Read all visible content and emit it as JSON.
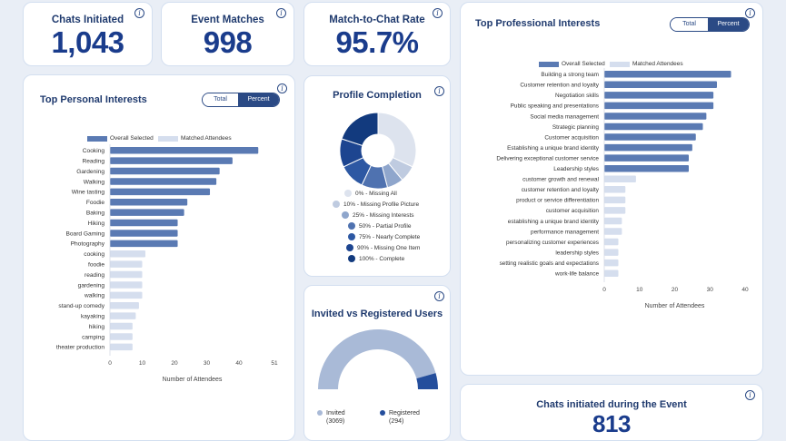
{
  "kpis": {
    "chats_initiated": {
      "label": "Chats Initiated",
      "value": "1,043"
    },
    "event_matches": {
      "label": "Event Matches",
      "value": "998"
    },
    "match_rate": {
      "label": "Match-to-Chat Rate",
      "value": "95.7%"
    }
  },
  "toggle": {
    "total": "Total",
    "percent": "Percent"
  },
  "info_glyph": "i",
  "personal": {
    "title": "Top Personal Interests",
    "legend_overall": "Overall Selected",
    "legend_matched": "Matched Attendees",
    "xlabel": "Number of Attendees"
  },
  "professional": {
    "title": "Top Professional Interests",
    "legend_overall": "Overall Selected",
    "legend_matched": "Matched Attendees",
    "xlabel": "Number of Attendees"
  },
  "profile": {
    "title": "Profile Completion",
    "legend": [
      {
        "label": "0% - Missing All",
        "color": "#dde3ee"
      },
      {
        "label": "10% - Missing Profile Picture",
        "color": "#bfcbe0"
      },
      {
        "label": "25% - Missing Interests",
        "color": "#8fa6cc"
      },
      {
        "label": "50% - Partial Profile",
        "color": "#4f72b0"
      },
      {
        "label": "75% - Nearly Complete",
        "color": "#2d58a3"
      },
      {
        "label": "90% - Missing One Item",
        "color": "#1d4590"
      },
      {
        "label": "100% - Complete",
        "color": "#123a7e"
      }
    ]
  },
  "invited": {
    "title": "Invited vs Registered Users",
    "invited_label": "Invited",
    "invited_value": "(3069)",
    "registered_label": "Registered",
    "registered_value": "(294)"
  },
  "chats_event": {
    "title": "Chats initiated during the Event",
    "value": "813"
  },
  "colors": {
    "overall": "#5a7ab3",
    "matched": "#d5deee",
    "accent": "#1a3c8c",
    "invited": "#a9bad7",
    "registered": "#244e9c"
  },
  "chart_data": [
    {
      "type": "bar",
      "orientation": "horizontal",
      "title": "Top Personal Interests",
      "xlabel": "Number of Attendees",
      "xticks": [
        "0",
        "10",
        "20",
        "30",
        "40",
        "51"
      ],
      "xlim": [
        0,
        51
      ],
      "series": [
        {
          "name": "Overall Selected",
          "categories": [
            "Cooking",
            "Reading",
            "Gardening",
            "Walking",
            "Wine tasting",
            "Foodie",
            "Baking",
            "Hiking",
            "Board Gaming",
            "Photography"
          ],
          "values": [
            46,
            38,
            34,
            33,
            31,
            24,
            23,
            21,
            21,
            21
          ]
        },
        {
          "name": "Matched Attendees",
          "categories": [
            "cooking",
            "foodie",
            "reading",
            "gardening",
            "walking",
            "stand-up comedy",
            "kayaking",
            "hiking",
            "camping",
            "theater production"
          ],
          "values": [
            11,
            10,
            10,
            10,
            10,
            9,
            8,
            7,
            7,
            7
          ]
        }
      ]
    },
    {
      "type": "bar",
      "orientation": "horizontal",
      "title": "Top Professional Interests",
      "xlabel": "Number of Attendees",
      "xticks": [
        "0",
        "10",
        "20",
        "30",
        "40"
      ],
      "xlim": [
        0,
        40
      ],
      "series": [
        {
          "name": "Overall Selected",
          "categories": [
            "Building a strong team",
            "Customer retention and loyalty",
            "Negotiation skills",
            "Public speaking and presentations",
            "Social media management",
            "Strategic planning",
            "Customer acquisition",
            "Establishing a unique brand identity",
            "Delivering exceptional customer service",
            "Leadership styles"
          ],
          "values": [
            36,
            32,
            31,
            31,
            29,
            28,
            26,
            25,
            24,
            24
          ]
        },
        {
          "name": "Matched Attendees",
          "categories": [
            "customer growth and renewal",
            "customer retention and loyalty",
            "product or service differentiation",
            "customer acquisition",
            "establishing a unique brand identity",
            "performance management",
            "personalizing customer experiences",
            "leadership styles",
            "setting realistic goals and expectations",
            "work-life balance"
          ],
          "values": [
            9,
            6,
            6,
            6,
            5,
            5,
            4,
            4,
            4,
            4
          ]
        }
      ]
    },
    {
      "type": "pie",
      "title": "Profile Completion",
      "labels": [
        "0% - Missing All",
        "10% - Missing Profile Picture",
        "25% - Missing Interests",
        "50% - Partial Profile",
        "75% - Nearly Complete",
        "90% - Missing One Item",
        "100% - Complete"
      ],
      "values": [
        32,
        7,
        7,
        11,
        11,
        12,
        20
      ]
    },
    {
      "type": "pie",
      "subtype": "half-donut",
      "title": "Invited vs Registered Users",
      "labels": [
        "Invited",
        "Registered"
      ],
      "values": [
        3069,
        294
      ]
    }
  ]
}
